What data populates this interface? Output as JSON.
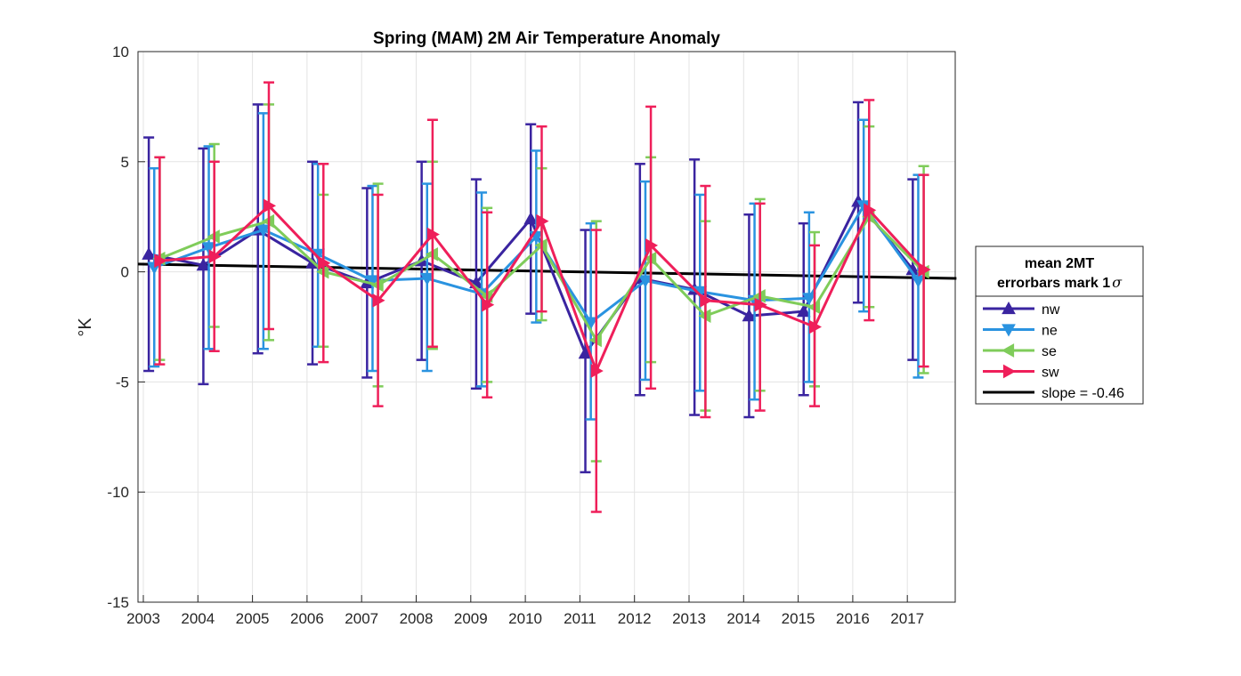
{
  "chart_data": {
    "type": "line",
    "title": "Spring (MAM) 2M Air Temperature Anomaly",
    "ylabel": "°K",
    "xlabel": "",
    "xlim": [
      2003,
      2017.9
    ],
    "ylim": [
      -15,
      10
    ],
    "x_ticks": [
      "2003",
      "2004",
      "2005",
      "2006",
      "2007",
      "2008",
      "2009",
      "2010",
      "2011",
      "2012",
      "2013",
      "2014",
      "2015",
      "2016",
      "2017"
    ],
    "y_ticks": [
      "10",
      "5",
      "0",
      "-5",
      "-10",
      "-15"
    ],
    "grid": true,
    "legend": {
      "placement": "outside-right",
      "title_line1": "mean 2MT",
      "title_line2": "errorbars mark 1",
      "title_symbol": "σ",
      "entries": [
        "nw",
        "ne",
        "se",
        "sw",
        "slope = -0.46"
      ]
    },
    "series": [
      {
        "name": "nw",
        "color": "#3a24a0",
        "marker": "triangle-up",
        "x": [
          2003.1,
          2004.1,
          2005.1,
          2006.1,
          2007.1,
          2008.1,
          2009.1,
          2010.1,
          2011.1,
          2012.1,
          2013.1,
          2014.1,
          2015.1,
          2016.1,
          2017.1
        ],
        "y": [
          0.8,
          0.3,
          1.9,
          0.4,
          -0.5,
          0.5,
          -0.5,
          2.4,
          -3.7,
          -0.3,
          -0.8,
          -2.0,
          -1.8,
          3.2,
          0.1
        ],
        "err_low": [
          -4.5,
          -5.1,
          -3.7,
          -4.2,
          -4.8,
          -4.0,
          -5.3,
          -1.9,
          -9.1,
          -5.6,
          -6.5,
          -6.6,
          -5.6,
          -1.4,
          -4.0
        ],
        "err_high": [
          6.1,
          5.6,
          7.6,
          5.0,
          3.8,
          5.0,
          4.2,
          6.7,
          1.9,
          4.9,
          5.1,
          2.6,
          2.2,
          7.7,
          4.2
        ]
      },
      {
        "name": "ne",
        "color": "#2a93e0",
        "marker": "triangle-down",
        "x": [
          2003.2,
          2004.2,
          2005.2,
          2006.2,
          2007.2,
          2008.2,
          2009.2,
          2010.2,
          2011.2,
          2012.2,
          2013.2,
          2014.2,
          2015.2,
          2016.2,
          2017.2
        ],
        "y": [
          0.2,
          1.1,
          1.9,
          0.8,
          -0.4,
          -0.3,
          -1.0,
          1.6,
          -2.3,
          -0.4,
          -0.9,
          -1.3,
          -1.2,
          3.0,
          -0.4
        ],
        "err_low": [
          -4.3,
          -3.5,
          -3.5,
          -3.4,
          -4.5,
          -4.5,
          -5.2,
          -2.3,
          -6.7,
          -4.9,
          -5.4,
          -5.8,
          -5.0,
          -1.8,
          -4.8
        ],
        "err_high": [
          4.7,
          5.7,
          7.2,
          4.9,
          3.9,
          4.0,
          3.6,
          5.5,
          2.2,
          4.1,
          3.5,
          3.1,
          2.7,
          6.9,
          4.4
        ]
      },
      {
        "name": "se",
        "color": "#7fcc5a",
        "marker": "triangle-left",
        "x": [
          2003.3,
          2004.3,
          2005.3,
          2006.3,
          2007.3,
          2008.3,
          2009.3,
          2010.3,
          2011.3,
          2012.3,
          2013.3,
          2014.3,
          2015.3,
          2016.3,
          2017.3
        ],
        "y": [
          0.6,
          1.6,
          2.3,
          0.0,
          -0.6,
          0.8,
          -1.1,
          1.2,
          -3.1,
          0.6,
          -2.0,
          -1.1,
          -1.6,
          2.5,
          0.0
        ],
        "err_low": [
          -4.0,
          -2.5,
          -3.1,
          -3.4,
          -5.2,
          -3.5,
          -5.0,
          -2.2,
          -8.6,
          -4.1,
          -6.3,
          -5.4,
          -5.2,
          -1.6,
          -4.6
        ],
        "err_high": [
          5.2,
          5.8,
          7.6,
          3.5,
          4.0,
          5.0,
          2.9,
          4.7,
          2.3,
          5.2,
          2.3,
          3.3,
          1.8,
          6.6,
          4.8
        ]
      },
      {
        "name": "sw",
        "color": "#ef1f5a",
        "marker": "triangle-right",
        "x": [
          2003.3,
          2004.3,
          2005.3,
          2006.3,
          2007.3,
          2008.3,
          2009.3,
          2010.3,
          2011.3,
          2012.3,
          2013.3,
          2014.3,
          2015.3,
          2016.3,
          2017.3
        ],
        "y": [
          0.5,
          0.7,
          3.0,
          0.4,
          -1.3,
          1.7,
          -1.5,
          2.3,
          -4.5,
          1.2,
          -1.3,
          -1.5,
          -2.5,
          2.8,
          0.1
        ],
        "err_low": [
          -4.2,
          -3.6,
          -2.6,
          -4.1,
          -6.1,
          -3.4,
          -5.7,
          -1.8,
          -10.9,
          -5.3,
          -6.6,
          -6.3,
          -6.1,
          -2.2,
          -4.3
        ],
        "err_high": [
          5.2,
          5.0,
          8.6,
          4.9,
          3.5,
          6.9,
          2.7,
          6.6,
          1.9,
          7.5,
          3.9,
          3.1,
          1.2,
          7.8,
          4.4
        ]
      }
    ],
    "trend": {
      "name": "slope = -0.46",
      "color": "#000000",
      "x": [
        2003,
        2017.9
      ],
      "y": [
        0.35,
        -0.3
      ]
    }
  }
}
